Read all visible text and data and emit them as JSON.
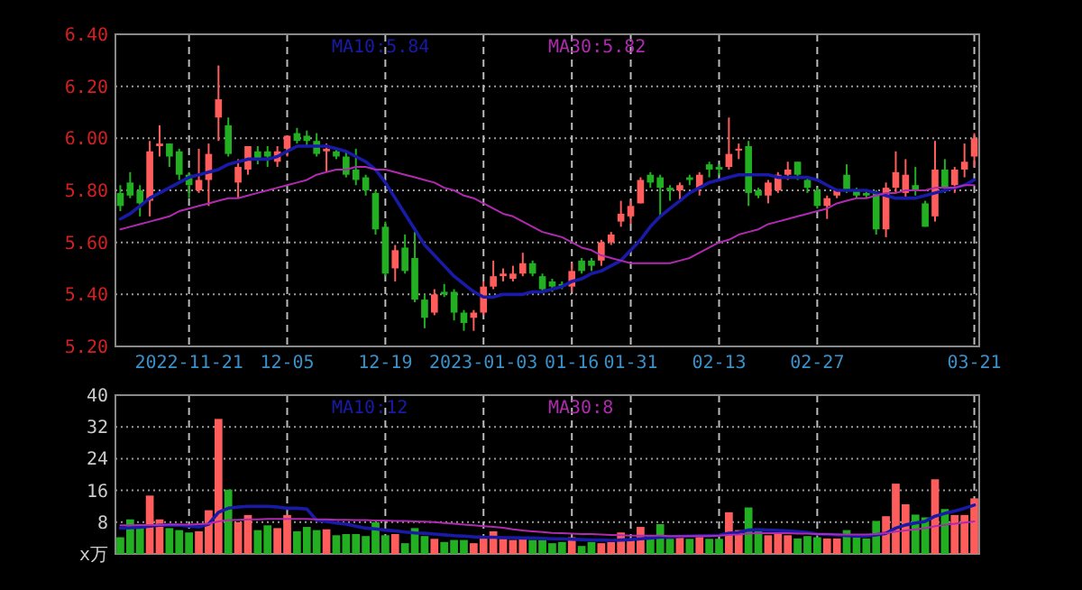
{
  "chart_data": [
    {
      "type": "candlestick",
      "categories": [
        null,
        null,
        null,
        null,
        null,
        null,
        null,
        "2022-11-21",
        null,
        null,
        null,
        null,
        null,
        null,
        null,
        null,
        null,
        "12-05",
        null,
        null,
        null,
        null,
        null,
        null,
        null,
        null,
        null,
        "12-19",
        null,
        null,
        null,
        null,
        null,
        null,
        null,
        null,
        null,
        "2023-01-03",
        null,
        null,
        null,
        null,
        null,
        null,
        null,
        null,
        "01-16",
        null,
        null,
        null,
        null,
        null,
        "01-31",
        null,
        null,
        null,
        null,
        null,
        null,
        null,
        null,
        "02-13",
        null,
        null,
        null,
        null,
        null,
        null,
        null,
        null,
        null,
        "02-27",
        null,
        null,
        null,
        null,
        null,
        null,
        null,
        null,
        null,
        null,
        null,
        null,
        null,
        null,
        null,
        "03-21"
      ],
      "ohlc": [
        [
          5.79,
          5.82,
          5.72,
          5.74
        ],
        [
          5.83,
          5.87,
          5.77,
          5.78
        ],
        [
          5.8,
          5.82,
          5.7,
          5.75
        ],
        [
          5.76,
          5.99,
          5.7,
          5.95
        ],
        [
          5.97,
          6.05,
          5.93,
          5.98
        ],
        [
          5.98,
          5.98,
          5.89,
          5.93
        ],
        [
          5.95,
          5.96,
          5.84,
          5.86
        ],
        [
          5.86,
          5.87,
          5.77,
          5.82
        ],
        [
          5.8,
          5.96,
          5.79,
          5.84
        ],
        [
          5.84,
          5.98,
          5.74,
          5.94
        ],
        [
          6.08,
          6.28,
          5.99,
          6.15
        ],
        [
          6.05,
          6.08,
          5.93,
          5.94
        ],
        [
          5.83,
          5.92,
          5.77,
          5.89
        ],
        [
          5.88,
          5.97,
          5.86,
          5.97
        ],
        [
          5.95,
          5.97,
          5.9,
          5.92
        ],
        [
          5.95,
          5.97,
          5.89,
          5.93
        ],
        [
          5.91,
          5.97,
          5.89,
          5.95
        ],
        [
          5.96,
          6.01,
          5.93,
          6.01
        ],
        [
          6.02,
          6.04,
          5.98,
          5.99
        ],
        [
          6.01,
          6.03,
          5.97,
          5.99
        ],
        [
          5.99,
          6.02,
          5.93,
          5.94
        ],
        [
          5.95,
          5.98,
          5.87,
          5.96
        ],
        [
          5.95,
          5.96,
          5.92,
          5.93
        ],
        [
          5.93,
          5.95,
          5.85,
          5.86
        ],
        [
          5.88,
          5.96,
          5.82,
          5.84
        ],
        [
          5.85,
          5.86,
          5.78,
          5.8
        ],
        [
          5.79,
          5.8,
          5.63,
          5.65
        ],
        [
          5.66,
          5.68,
          5.47,
          5.48
        ],
        [
          5.5,
          5.59,
          5.45,
          5.57
        ],
        [
          5.58,
          5.63,
          5.48,
          5.49
        ],
        [
          5.54,
          5.64,
          5.37,
          5.38
        ],
        [
          5.38,
          5.4,
          5.27,
          5.31
        ],
        [
          5.33,
          5.42,
          5.32,
          5.4
        ],
        [
          5.41,
          5.44,
          5.39,
          5.4
        ],
        [
          5.41,
          5.42,
          5.3,
          5.33
        ],
        [
          5.33,
          5.34,
          5.26,
          5.29
        ],
        [
          5.31,
          5.34,
          5.26,
          5.33
        ],
        [
          5.33,
          5.45,
          5.32,
          5.43
        ],
        [
          5.43,
          5.53,
          5.42,
          5.47
        ],
        [
          5.47,
          5.5,
          5.45,
          5.48
        ],
        [
          5.46,
          5.51,
          5.45,
          5.48
        ],
        [
          5.48,
          5.56,
          5.47,
          5.52
        ],
        [
          5.52,
          5.53,
          5.47,
          5.48
        ],
        [
          5.47,
          5.48,
          5.41,
          5.42
        ],
        [
          5.45,
          5.46,
          5.41,
          5.43
        ],
        [
          5.44,
          5.45,
          5.42,
          5.43
        ],
        [
          5.43,
          5.52,
          5.41,
          5.49
        ],
        [
          5.53,
          5.54,
          5.48,
          5.49
        ],
        [
          5.53,
          5.54,
          5.49,
          5.51
        ],
        [
          5.53,
          5.61,
          5.51,
          5.6
        ],
        [
          5.6,
          5.64,
          5.59,
          5.63
        ],
        [
          5.68,
          5.76,
          5.66,
          5.71
        ],
        [
          5.7,
          5.76,
          5.67,
          5.74
        ],
        [
          5.75,
          5.85,
          5.75,
          5.84
        ],
        [
          5.86,
          5.87,
          5.81,
          5.83
        ],
        [
          5.85,
          5.86,
          5.7,
          5.81
        ],
        [
          5.81,
          5.82,
          5.76,
          5.8
        ],
        [
          5.8,
          5.83,
          5.76,
          5.82
        ],
        [
          5.85,
          5.86,
          5.82,
          5.84
        ],
        [
          5.81,
          5.87,
          5.78,
          5.86
        ],
        [
          5.9,
          5.91,
          5.85,
          5.88
        ],
        [
          5.89,
          5.9,
          5.86,
          5.88
        ],
        [
          5.89,
          6.08,
          5.88,
          5.94
        ],
        [
          5.96,
          5.98,
          5.92,
          5.96
        ],
        [
          5.97,
          5.99,
          5.74,
          5.79
        ],
        [
          5.8,
          5.81,
          5.77,
          5.78
        ],
        [
          5.78,
          5.84,
          5.75,
          5.83
        ],
        [
          5.8,
          5.87,
          5.79,
          5.86
        ],
        [
          5.86,
          5.91,
          5.84,
          5.88
        ],
        [
          5.91,
          5.91,
          5.84,
          5.86
        ],
        [
          5.84,
          5.85,
          5.79,
          5.81
        ],
        [
          5.8,
          5.81,
          5.73,
          5.74
        ],
        [
          5.74,
          5.78,
          5.69,
          5.77
        ],
        [
          5.78,
          5.8,
          5.77,
          5.8
        ],
        [
          5.86,
          5.9,
          5.79,
          5.8
        ],
        [
          5.8,
          5.81,
          5.77,
          5.78
        ],
        [
          5.79,
          5.8,
          5.77,
          5.78
        ],
        [
          5.79,
          5.8,
          5.63,
          5.65
        ],
        [
          5.65,
          5.83,
          5.62,
          5.81
        ],
        [
          5.81,
          5.95,
          5.79,
          5.87
        ],
        [
          5.79,
          5.92,
          5.77,
          5.86
        ],
        [
          5.82,
          5.89,
          5.78,
          5.8
        ],
        [
          5.75,
          5.76,
          5.66,
          5.66
        ],
        [
          5.7,
          5.99,
          5.68,
          5.88
        ],
        [
          5.88,
          5.92,
          5.79,
          5.81
        ],
        [
          5.82,
          5.89,
          5.79,
          5.88
        ],
        [
          5.88,
          5.98,
          5.85,
          5.91
        ],
        [
          5.93,
          6.02,
          5.89,
          6.0
        ]
      ],
      "colors": [
        "#22b022",
        "#22b022",
        "#22b022",
        "#ff5c5c",
        "#ff5c5c",
        "#22b022",
        "#22b022",
        "#22b022",
        "#ff5c5c",
        "#ff5c5c",
        "#ff5c5c",
        "#22b022",
        "#ff5c5c",
        "#ff5c5c",
        "#22b022",
        "#22b022",
        "#ff5c5c",
        "#ff5c5c",
        "#22b022",
        "#22b022",
        "#22b022",
        "#ff5c5c",
        "#22b022",
        "#22b022",
        "#22b022",
        "#22b022",
        "#22b022",
        "#22b022",
        "#ff5c5c",
        "#22b022",
        "#22b022",
        "#22b022",
        "#ff5c5c",
        "#22b022",
        "#22b022",
        "#22b022",
        "#ff5c5c",
        "#ff5c5c",
        "#ff5c5c",
        "#ff5c5c",
        "#ff5c5c",
        "#ff5c5c",
        "#22b022",
        "#22b022",
        "#22b022",
        "#22b022",
        "#ff5c5c",
        "#22b022",
        "#22b022",
        "#ff5c5c",
        "#ff5c5c",
        "#ff5c5c",
        "#ff5c5c",
        "#ff5c5c",
        "#22b022",
        "#22b022",
        "#22b022",
        "#ff5c5c",
        "#22b022",
        "#ff5c5c",
        "#22b022",
        "#22b022",
        "#ff5c5c",
        "#ff5c5c",
        "#22b022",
        "#22b022",
        "#ff5c5c",
        "#ff5c5c",
        "#ff5c5c",
        "#22b022",
        "#22b022",
        "#22b022",
        "#ff5c5c",
        "#ff5c5c",
        "#22b022",
        "#22b022",
        "#22b022",
        "#22b022",
        "#ff5c5c",
        "#ff5c5c",
        "#ff5c5c",
        "#22b022",
        "#22b022",
        "#ff5c5c",
        "#22b022",
        "#ff5c5c",
        "#ff5c5c",
        "#ff5c5c"
      ],
      "series": [
        {
          "type": "line",
          "name": "MA10:5.84",
          "color": "#1a1aa8",
          "values": [
            5.69,
            5.71,
            5.74,
            5.77,
            5.79,
            5.81,
            5.83,
            5.85,
            5.86,
            5.87,
            5.88,
            5.9,
            5.91,
            5.92,
            5.92,
            5.92,
            5.93,
            5.95,
            5.97,
            5.97,
            5.97,
            5.97,
            5.96,
            5.95,
            5.93,
            5.91,
            5.88,
            5.83,
            5.77,
            5.71,
            5.65,
            5.59,
            5.55,
            5.51,
            5.47,
            5.44,
            5.41,
            5.39,
            5.39,
            5.4,
            5.4,
            5.4,
            5.41,
            5.41,
            5.42,
            5.43,
            5.45,
            5.46,
            5.48,
            5.49,
            5.51,
            5.53,
            5.57,
            5.61,
            5.66,
            5.7,
            5.73,
            5.76,
            5.79,
            5.81,
            5.83,
            5.84,
            5.85,
            5.86,
            5.86,
            5.86,
            5.86,
            5.85,
            5.85,
            5.85,
            5.85,
            5.84,
            5.82,
            5.8,
            5.8,
            5.8,
            5.8,
            5.79,
            5.78,
            5.77,
            5.77,
            5.77,
            5.78,
            5.79,
            5.8,
            5.81,
            5.82,
            5.84
          ]
        },
        {
          "type": "line",
          "name": "MA30:5.82",
          "color": "#b02ab0",
          "values": [
            5.65,
            5.66,
            5.67,
            5.68,
            5.69,
            5.7,
            5.72,
            5.73,
            5.74,
            5.75,
            5.76,
            5.77,
            5.77,
            5.78,
            5.79,
            5.8,
            5.81,
            5.82,
            5.83,
            5.84,
            5.86,
            5.87,
            5.88,
            5.88,
            5.89,
            5.89,
            5.88,
            5.88,
            5.87,
            5.86,
            5.85,
            5.84,
            5.83,
            5.81,
            5.8,
            5.78,
            5.77,
            5.75,
            5.73,
            5.71,
            5.7,
            5.68,
            5.66,
            5.64,
            5.63,
            5.62,
            5.6,
            5.58,
            5.57,
            5.55,
            5.54,
            5.53,
            5.52,
            5.52,
            5.52,
            5.52,
            5.52,
            5.53,
            5.54,
            5.56,
            5.58,
            5.6,
            5.61,
            5.63,
            5.64,
            5.65,
            5.67,
            5.68,
            5.69,
            5.7,
            5.71,
            5.72,
            5.73,
            5.75,
            5.76,
            5.77,
            5.77,
            5.78,
            5.79,
            5.79,
            5.8,
            5.8,
            5.8,
            5.81,
            5.81,
            5.81,
            5.82,
            5.82
          ]
        }
      ],
      "ylim": [
        5.2,
        6.4
      ],
      "yticks": [
        {
          "value": 5.2,
          "label": "5.20"
        },
        {
          "value": 5.4,
          "label": "5.40"
        },
        {
          "value": 5.6,
          "label": "5.60"
        },
        {
          "value": 5.8,
          "label": "5.80"
        },
        {
          "value": 6.0,
          "label": "6.00"
        },
        {
          "value": 6.2,
          "label": "6.20"
        },
        {
          "value": 6.4,
          "label": "6.40"
        }
      ],
      "grid": true,
      "legend": "top"
    },
    {
      "type": "bar",
      "categories": [
        null,
        null,
        null,
        null,
        null,
        null,
        null,
        null,
        null,
        null,
        null,
        null,
        null,
        null,
        null,
        null,
        null,
        null,
        null,
        null,
        null,
        null,
        null,
        null,
        null,
        null,
        null,
        null,
        null,
        null,
        null,
        null,
        null,
        null,
        null,
        null,
        null,
        null,
        null,
        null,
        null,
        null,
        null,
        null,
        null,
        null,
        null,
        null,
        null,
        null,
        null,
        null,
        null,
        null,
        null,
        null,
        null,
        null,
        null,
        null,
        null,
        null,
        null,
        null,
        null,
        null,
        null,
        null,
        null,
        null,
        null,
        null,
        null,
        null,
        null,
        null,
        null,
        null,
        null,
        null,
        null,
        null,
        null,
        null,
        null,
        null,
        null,
        null
      ],
      "values": [
        4.2,
        8.7,
        7.2,
        14.7,
        8.7,
        6.5,
        6,
        5.4,
        5.7,
        11,
        34,
        16.2,
        8,
        9.8,
        6,
        7.2,
        6.5,
        9.8,
        5.7,
        6.8,
        6,
        6.2,
        4.7,
        5,
        5,
        4.5,
        8,
        4.7,
        5,
        2.7,
        6.5,
        4.5,
        3.8,
        3,
        3.5,
        3.5,
        2.7,
        4.2,
        5.7,
        3.8,
        3.5,
        3.8,
        3.5,
        3.5,
        2.7,
        3,
        4.2,
        2,
        3,
        2.7,
        3,
        5.4,
        3.5,
        6.8,
        4.5,
        7.5,
        3.8,
        4.5,
        3.8,
        4.7,
        3.8,
        3.8,
        10.5,
        6,
        11.7,
        5.7,
        4.7,
        5,
        4.7,
        3.9,
        4.5,
        4.2,
        3.9,
        3.9,
        6,
        4.2,
        3.9,
        8.3,
        9.5,
        17.7,
        12.5,
        9.9,
        9.2,
        18.8,
        11.3,
        9.8,
        9.8,
        14
      ],
      "colors": [
        "#22b022",
        "#22b022",
        "#22b022",
        "#ff5c5c",
        "#ff5c5c",
        "#22b022",
        "#22b022",
        "#22b022",
        "#ff5c5c",
        "#ff5c5c",
        "#ff5c5c",
        "#22b022",
        "#ff5c5c",
        "#ff5c5c",
        "#22b022",
        "#22b022",
        "#ff5c5c",
        "#ff5c5c",
        "#22b022",
        "#22b022",
        "#22b022",
        "#ff5c5c",
        "#22b022",
        "#22b022",
        "#22b022",
        "#22b022",
        "#22b022",
        "#22b022",
        "#ff5c5c",
        "#22b022",
        "#22b022",
        "#22b022",
        "#ff5c5c",
        "#22b022",
        "#22b022",
        "#22b022",
        "#ff5c5c",
        "#ff5c5c",
        "#ff5c5c",
        "#ff5c5c",
        "#ff5c5c",
        "#ff5c5c",
        "#22b022",
        "#22b022",
        "#22b022",
        "#22b022",
        "#ff5c5c",
        "#22b022",
        "#22b022",
        "#ff5c5c",
        "#ff5c5c",
        "#ff5c5c",
        "#ff5c5c",
        "#ff5c5c",
        "#22b022",
        "#22b022",
        "#22b022",
        "#ff5c5c",
        "#22b022",
        "#ff5c5c",
        "#22b022",
        "#22b022",
        "#ff5c5c",
        "#ff5c5c",
        "#22b022",
        "#22b022",
        "#ff5c5c",
        "#ff5c5c",
        "#ff5c5c",
        "#22b022",
        "#22b022",
        "#22b022",
        "#ff5c5c",
        "#ff5c5c",
        "#22b022",
        "#22b022",
        "#22b022",
        "#22b022",
        "#ff5c5c",
        "#ff5c5c",
        "#ff5c5c",
        "#22b022",
        "#22b022",
        "#ff5c5c",
        "#22b022",
        "#ff5c5c",
        "#ff5c5c",
        "#ff5c5c"
      ],
      "series": [
        {
          "type": "line",
          "name": "MA10:12",
          "color": "#1a1aa8",
          "values": [
            6.5,
            6.6,
            6.7,
            7.0,
            7.2,
            7.3,
            7.2,
            7.0,
            6.8,
            7.5,
            10.5,
            11.5,
            11.8,
            12.0,
            12.0,
            12.0,
            11.8,
            11.5,
            11.5,
            11.3,
            8.5,
            8.2,
            7.8,
            7.5,
            7.0,
            6.5,
            6.3,
            6.0,
            5.8,
            5.5,
            5.3,
            5.2,
            5.0,
            4.8,
            4.6,
            4.5,
            4.3,
            4.2,
            4.2,
            4.1,
            4.1,
            4.0,
            4.0,
            3.9,
            3.8,
            3.8,
            3.7,
            3.6,
            3.5,
            3.5,
            3.4,
            3.5,
            3.6,
            3.8,
            4.0,
            4.2,
            4.3,
            4.4,
            4.5,
            4.6,
            4.6,
            4.7,
            5.2,
            5.4,
            6.0,
            6.1,
            6.0,
            5.9,
            5.8,
            5.6,
            5.4,
            5.0,
            4.9,
            4.8,
            4.6,
            4.5,
            4.5,
            4.8,
            5.2,
            6.5,
            7.3,
            7.8,
            8.2,
            9.5,
            10.2,
            10.8,
            11.5,
            12.3
          ]
        },
        {
          "type": "line",
          "name": "MA30:8",
          "color": "#b02ab0",
          "values": [
            7.2,
            7.2,
            7.3,
            7.3,
            7.3,
            7.4,
            7.4,
            7.4,
            7.5,
            7.6,
            8.2,
            8.5,
            8.6,
            8.7,
            8.7,
            8.8,
            8.8,
            8.8,
            8.8,
            8.8,
            8.7,
            8.7,
            8.6,
            8.6,
            8.5,
            8.5,
            8.4,
            8.4,
            8.3,
            8.3,
            8.2,
            8.1,
            8.0,
            7.8,
            7.6,
            7.4,
            7.2,
            7.0,
            6.8,
            6.6,
            6.2,
            5.9,
            5.7,
            5.5,
            5.3,
            5.2,
            5.1,
            5.0,
            5.0,
            4.9,
            4.8,
            4.7,
            4.6,
            4.6,
            4.6,
            4.6,
            4.5,
            4.5,
            4.5,
            4.5,
            4.5,
            4.6,
            4.8,
            4.9,
            5.1,
            5.2,
            5.2,
            5.2,
            5.2,
            5.1,
            5.1,
            5.0,
            5.0,
            4.9,
            4.9,
            4.9,
            4.9,
            5.0,
            5.2,
            5.6,
            5.9,
            6.2,
            6.5,
            7.0,
            7.3,
            7.6,
            7.9,
            8.2
          ]
        }
      ],
      "ylim": [
        0,
        40
      ],
      "yticks": [
        {
          "value": 0,
          "label": "x万"
        },
        8,
        16,
        24,
        32,
        40
      ],
      "tick_labels": "y",
      "grid": true,
      "legend": "top"
    }
  ]
}
